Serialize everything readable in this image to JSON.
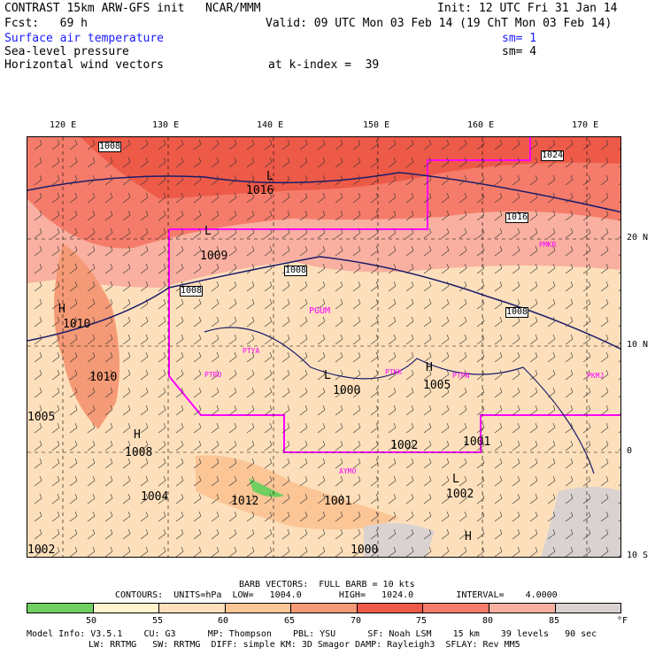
{
  "header": {
    "line1_left": "CONTRAST 15km ARW-GFS init   NCAR/MMM",
    "line1_right": "Init: 12 UTC Fri 31 Jan 14",
    "line2_left": "Fcst:   69 h",
    "line2_right": "Valid: 09 UTC Mon 03 Feb 14 (19 ChT Mon 03 Feb 14)",
    "field1": "Surface air temperature",
    "field1_sm": "sm= 1",
    "field2": "Sea-level pressure",
    "field2_sm": "sm= 4",
    "field3": "Horizontal wind vectors",
    "kindex": "at k-index =  39"
  },
  "map": {
    "lon_labels": [
      "120 E",
      "130 E",
      "140 E",
      "150 E",
      "160 E",
      "170 E"
    ],
    "lat_labels": [
      "20 N",
      "10 N",
      "0",
      "10 S"
    ],
    "pressure_labels": [
      "1016",
      "1008",
      "1009",
      "1008",
      "1008",
      "1016",
      "1008",
      "1010",
      "1010",
      "1000",
      "1005",
      "1008",
      "1004",
      "1002",
      "1001",
      "1012",
      "1001",
      "1002",
      "1000",
      "1002",
      "1024",
      "1005"
    ],
    "station_labels": [
      "PGUM",
      "PTYA",
      "PTKK",
      "PTPN",
      "PKMJ",
      "PTRO",
      "PMKR",
      "AYMO"
    ],
    "pressure_extrema": [
      "L",
      "H",
      "L",
      "H",
      "L",
      "H",
      "L",
      "H"
    ]
  },
  "footer": {
    "barb": "BARB VECTORS:  FULL BARB = 10 kts",
    "contours": "CONTOURS:  UNITS=hPa  LOW=   1004.0       HIGH=   1024.0        INTERVAL=    4.0000",
    "ticks": [
      "50",
      "55",
      "60",
      "65",
      "70",
      "75",
      "80",
      "85"
    ],
    "unit": "°F",
    "model1": "Model Info: V3.5.1    CU: G3      MP: Thompson    PBL: YSU      SF: Noah LSM    15 km    39 levels   90 sec",
    "model2": "LW: RRTMG   SW: RRTMG  DIFF: simple KM: 3D Smagor DAMP: Rayleigh3  SFLAY: Rev MM5"
  },
  "colors": {
    "bin1": "#6fcf5f",
    "bin2": "#fff2cc",
    "bin3": "#fde0bb",
    "bin4": "#fbc596",
    "bin5": "#f59a76",
    "bin6": "#ee5a48",
    "bin7": "#f57c6a",
    "bin8": "#f9b0a0",
    "bin9": "#d9d2d0",
    "outline_magenta": "#ff00ff",
    "isobar": "#1b1b6b"
  }
}
